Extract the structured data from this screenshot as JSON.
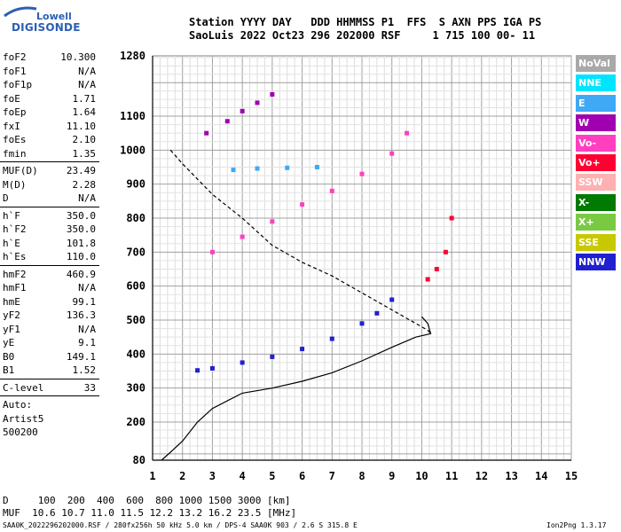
{
  "logo": {
    "line1": "Lowell",
    "line2": "DIGISONDE"
  },
  "header": {
    "line1": "Station YYYY DAY   DDD HHMMSS P1  FFS  S AXN PPS IGA PS",
    "line2": "SaoLuis 2022 Oct23 296 202000 RSF     1 715 100 00- 11"
  },
  "params": {
    "group1": [
      {
        "label": "foF2",
        "value": "10.300"
      },
      {
        "label": "foF1",
        "value": "N/A"
      },
      {
        "label": "foF1p",
        "value": "N/A"
      },
      {
        "label": "foE",
        "value": "1.71"
      },
      {
        "label": "foEp",
        "value": "1.64"
      },
      {
        "label": "fxI",
        "value": "11.10"
      },
      {
        "label": "foEs",
        "value": "2.10"
      },
      {
        "label": "fmin",
        "value": "1.35"
      }
    ],
    "group2": [
      {
        "label": "MUF(D)",
        "value": "23.49"
      },
      {
        "label": "M(D)",
        "value": "2.28"
      },
      {
        "label": "D",
        "value": "N/A"
      }
    ],
    "group3": [
      {
        "label": "h`F",
        "value": "350.0"
      },
      {
        "label": "h`F2",
        "value": "350.0"
      },
      {
        "label": "h`E",
        "value": "101.8"
      },
      {
        "label": "h`Es",
        "value": "110.0"
      }
    ],
    "group4": [
      {
        "label": "hmF2",
        "value": "460.9"
      },
      {
        "label": "hmF1",
        "value": "N/A"
      },
      {
        "label": "hmE",
        "value": "99.1"
      },
      {
        "label": "yF2",
        "value": "136.3"
      },
      {
        "label": "yF1",
        "value": "N/A"
      },
      {
        "label": "yE",
        "value": "9.1"
      },
      {
        "label": "B0",
        "value": "149.1"
      },
      {
        "label": "B1",
        "value": "1.52"
      }
    ],
    "group5": [
      {
        "label": "C-level",
        "value": "33"
      }
    ],
    "auto": {
      "line1": "Auto:",
      "line2": "Artist5",
      "line3": "500200"
    }
  },
  "legend": [
    {
      "label": "NoVal",
      "color": "#a9a9a9"
    },
    {
      "label": "NNE",
      "color": "#00e5ff"
    },
    {
      "label": "E",
      "color": "#3fa9f5"
    },
    {
      "label": "W",
      "color": "#a000b0"
    },
    {
      "label": "Vo-",
      "color": "#ff3fc0"
    },
    {
      "label": "Vo+",
      "color": "#ff0033"
    },
    {
      "label": "SSW",
      "color": "#ffb0b0"
    },
    {
      "label": "X-",
      "color": "#007a00"
    },
    {
      "label": "X+",
      "color": "#7ac943"
    },
    {
      "label": "SSE",
      "color": "#c8c800"
    },
    {
      "label": "NNW",
      "color": "#2020d0"
    }
  ],
  "bottom": {
    "d_line": "D     100  200  400  600  800 1000 1500 3000 [km]",
    "muf_line": "MUF  10.6 10.7 11.0 11.5 12.2 13.2 16.2 23.5 [MHz]"
  },
  "footer": {
    "left": "SAA0K_2022296202000.RSF / 280fx256h 50 kHz 5.0 km / DPS-4 SAA0K 903 / 2.6 S 315.8 E",
    "right": "Ion2Png 1.3.17"
  },
  "chart_data": {
    "type": "scatter",
    "title": "",
    "xlabel": "",
    "ylabel": "",
    "xlim": [
      1,
      15
    ],
    "ylim": [
      80,
      1280
    ],
    "x_ticks": [
      "1",
      "2",
      "3",
      "4",
      "5",
      "6",
      "7",
      "8",
      "9",
      "10",
      "11",
      "12",
      "13",
      "14",
      "15"
    ],
    "y_ticks": [
      "80",
      "200",
      "300",
      "400",
      "500",
      "600",
      "700",
      "800",
      "900",
      "1000",
      "1100",
      "1280"
    ],
    "grid": true,
    "series": [
      {
        "name": "NNW",
        "color": "#2020d0",
        "x": [
          2.5,
          3.0,
          4.0,
          5.0,
          6.0,
          7.0,
          8.0,
          8.5,
          9.0
        ],
        "y": [
          352,
          358,
          375,
          392,
          415,
          445,
          490,
          520,
          560
        ]
      },
      {
        "name": "Vo-",
        "color": "#ff3fc0",
        "x": [
          3.0,
          4.0,
          5.0,
          6.0,
          7.0,
          8.0,
          9.0,
          9.5
        ],
        "y": [
          700,
          745,
          790,
          840,
          880,
          930,
          990,
          1050
        ]
      },
      {
        "name": "W",
        "color": "#a000b0",
        "x": [
          2.8,
          3.5,
          4.0,
          4.5,
          5.0
        ],
        "y": [
          1050,
          1085,
          1115,
          1140,
          1165
        ]
      },
      {
        "name": "E",
        "color": "#3fa9f5",
        "x": [
          3.7,
          4.5,
          5.5,
          6.5
        ],
        "y": [
          942,
          946,
          948,
          950
        ]
      },
      {
        "name": "Vo+",
        "color": "#ff0033",
        "x": [
          10.2,
          10.5,
          10.8,
          11.0
        ],
        "y": [
          620,
          650,
          700,
          800
        ]
      }
    ],
    "curves": [
      {
        "x": [
          1.3,
          1.6,
          2.0,
          2.5,
          3.0,
          4.0,
          5.0,
          6.0,
          7.0,
          8.0,
          9.0,
          9.8,
          10.3,
          10.2,
          10.0
        ],
        "y": [
          80,
          105,
          140,
          200,
          240,
          285,
          300,
          320,
          345,
          380,
          420,
          450,
          460,
          490,
          510
        ]
      },
      {
        "x": [
          1.6,
          2.0,
          3.0,
          4.0,
          5.0,
          6.0,
          7.0,
          8.0,
          9.0,
          9.8,
          10.2,
          10.3
        ],
        "y": [
          1000,
          960,
          870,
          800,
          720,
          670,
          630,
          580,
          530,
          490,
          470,
          460
        ]
      }
    ]
  }
}
